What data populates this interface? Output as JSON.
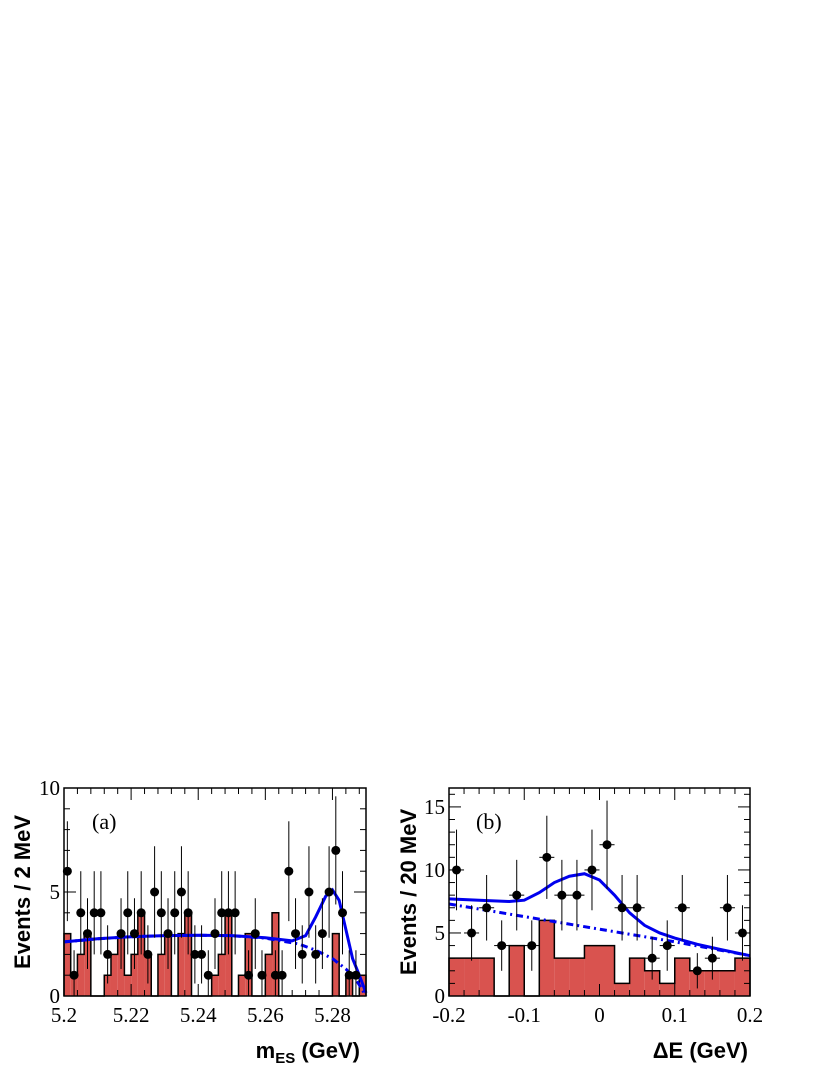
{
  "chart_data": [
    {
      "type": "bar",
      "panel_label": "(a)",
      "xlabel": "m",
      "xlabel_sub": "ES",
      "xlabel_unit": " (GeV)",
      "ylabel": "Events / 2 MeV",
      "xlim": [
        5.2,
        5.29
      ],
      "ylim": [
        0,
        10
      ],
      "x_ticks": [
        {
          "value": 5.2,
          "label": "5.2"
        },
        {
          "value": 5.22,
          "label": "5.22"
        },
        {
          "value": 5.24,
          "label": "5.24"
        },
        {
          "value": 5.26,
          "label": "5.26"
        },
        {
          "value": 5.28,
          "label": "5.28"
        }
      ],
      "y_ticks": [
        {
          "value": 0,
          "label": "0"
        },
        {
          "value": 5,
          "label": "5"
        },
        {
          "value": 10,
          "label": "10"
        }
      ],
      "histogram": {
        "bin_width": 0.002,
        "x_start": 5.2,
        "counts": [
          3,
          1,
          2,
          3,
          0,
          0,
          1,
          2,
          3,
          1,
          2,
          4,
          2,
          0,
          2,
          3,
          0,
          3,
          4,
          0,
          0,
          0,
          1,
          2,
          4,
          0,
          1,
          3,
          0,
          0,
          2,
          4,
          0,
          0,
          0,
          0,
          0,
          0,
          0,
          0,
          3,
          0,
          1,
          0,
          1
        ],
        "color": "#d9534f"
      },
      "data_points": [
        {
          "x": 5.201,
          "y": 6,
          "err": 2.4
        },
        {
          "x": 5.203,
          "y": 1,
          "err": 1.2
        },
        {
          "x": 5.205,
          "y": 4,
          "err": 2.0
        },
        {
          "x": 5.207,
          "y": 3,
          "err": 1.7
        },
        {
          "x": 5.209,
          "y": 4,
          "err": 2.0
        },
        {
          "x": 5.211,
          "y": 4,
          "err": 2.0
        },
        {
          "x": 5.213,
          "y": 2,
          "err": 1.4
        },
        {
          "x": 5.217,
          "y": 3,
          "err": 1.7
        },
        {
          "x": 5.219,
          "y": 4,
          "err": 2.0
        },
        {
          "x": 5.221,
          "y": 3,
          "err": 1.7
        },
        {
          "x": 5.223,
          "y": 4,
          "err": 2.0
        },
        {
          "x": 5.225,
          "y": 2,
          "err": 1.4
        },
        {
          "x": 5.227,
          "y": 5,
          "err": 2.2
        },
        {
          "x": 5.229,
          "y": 4,
          "err": 2.0
        },
        {
          "x": 5.231,
          "y": 3,
          "err": 1.7
        },
        {
          "x": 5.233,
          "y": 4,
          "err": 2.0
        },
        {
          "x": 5.235,
          "y": 5,
          "err": 2.2
        },
        {
          "x": 5.237,
          "y": 4,
          "err": 2.0
        },
        {
          "x": 5.239,
          "y": 2,
          "err": 1.4
        },
        {
          "x": 5.241,
          "y": 2,
          "err": 1.4
        },
        {
          "x": 5.243,
          "y": 1,
          "err": 1.2
        },
        {
          "x": 5.245,
          "y": 3,
          "err": 1.7
        },
        {
          "x": 5.247,
          "y": 4,
          "err": 2.0
        },
        {
          "x": 5.249,
          "y": 4,
          "err": 2.0
        },
        {
          "x": 5.251,
          "y": 4,
          "err": 2.0
        },
        {
          "x": 5.255,
          "y": 1,
          "err": 1.2
        },
        {
          "x": 5.257,
          "y": 3,
          "err": 1.7
        },
        {
          "x": 5.259,
          "y": 1,
          "err": 1.2
        },
        {
          "x": 5.263,
          "y": 1,
          "err": 1.2
        },
        {
          "x": 5.265,
          "y": 1,
          "err": 1.2
        },
        {
          "x": 5.267,
          "y": 6,
          "err": 2.4
        },
        {
          "x": 5.269,
          "y": 3,
          "err": 1.7
        },
        {
          "x": 5.271,
          "y": 2,
          "err": 1.4
        },
        {
          "x": 5.273,
          "y": 5,
          "err": 2.2
        },
        {
          "x": 5.275,
          "y": 2,
          "err": 1.4
        },
        {
          "x": 5.277,
          "y": 3,
          "err": 1.7
        },
        {
          "x": 5.279,
          "y": 5,
          "err": 2.2
        },
        {
          "x": 5.281,
          "y": 7,
          "err": 2.6
        },
        {
          "x": 5.283,
          "y": 4,
          "err": 2.0
        },
        {
          "x": 5.285,
          "y": 1,
          "err": 1.2
        },
        {
          "x": 5.287,
          "y": 1,
          "err": 1.2
        }
      ],
      "fit_total": {
        "color": "#0000ee",
        "points": [
          [
            5.2,
            2.6
          ],
          [
            5.21,
            2.75
          ],
          [
            5.22,
            2.85
          ],
          [
            5.23,
            2.9
          ],
          [
            5.24,
            2.92
          ],
          [
            5.25,
            2.9
          ],
          [
            5.26,
            2.8
          ],
          [
            5.268,
            2.65
          ],
          [
            5.272,
            2.9
          ],
          [
            5.275,
            3.8
          ],
          [
            5.278,
            4.8
          ],
          [
            5.28,
            5.1
          ],
          [
            5.282,
            4.6
          ],
          [
            5.284,
            3.2
          ],
          [
            5.286,
            1.8
          ],
          [
            5.288,
            1.0
          ],
          [
            5.29,
            0.15
          ]
        ]
      },
      "fit_background": {
        "color": "#0000ee",
        "points": [
          [
            5.2,
            2.6
          ],
          [
            5.21,
            2.75
          ],
          [
            5.22,
            2.85
          ],
          [
            5.23,
            2.9
          ],
          [
            5.24,
            2.92
          ],
          [
            5.25,
            2.9
          ],
          [
            5.26,
            2.78
          ],
          [
            5.27,
            2.5
          ],
          [
            5.275,
            2.2
          ],
          [
            5.28,
            1.8
          ],
          [
            5.284,
            1.3
          ],
          [
            5.287,
            0.8
          ],
          [
            5.29,
            0.0
          ]
        ]
      }
    },
    {
      "type": "bar",
      "panel_label": "(b)",
      "xlabel": "ΔE (GeV)",
      "ylabel": "Events / 20 MeV",
      "xlim": [
        -0.2,
        0.2
      ],
      "ylim": [
        0,
        16.5
      ],
      "x_ticks": [
        {
          "value": -0.2,
          "label": "-0.2"
        },
        {
          "value": -0.1,
          "label": "-0.1"
        },
        {
          "value": 0,
          "label": "0"
        },
        {
          "value": 0.1,
          "label": "0.1"
        },
        {
          "value": 0.2,
          "label": "0.2"
        }
      ],
      "y_ticks": [
        {
          "value": 0,
          "label": "0"
        },
        {
          "value": 5,
          "label": "5"
        },
        {
          "value": 10,
          "label": "10"
        },
        {
          "value": 15,
          "label": "15"
        }
      ],
      "histogram": {
        "bin_width": 0.02,
        "x_start": -0.2,
        "counts": [
          3,
          3,
          3,
          0,
          4,
          0,
          6,
          3,
          3,
          4,
          4,
          1,
          3,
          2,
          1,
          3,
          2,
          2,
          2,
          3
        ],
        "color": "#d9534f"
      },
      "data_points": [
        {
          "x": -0.19,
          "y": 10,
          "err": 3.2
        },
        {
          "x": -0.17,
          "y": 5,
          "err": 2.2
        },
        {
          "x": -0.15,
          "y": 7,
          "err": 2.6
        },
        {
          "x": -0.13,
          "y": 4,
          "err": 2.0
        },
        {
          "x": -0.11,
          "y": 8,
          "err": 2.8
        },
        {
          "x": -0.09,
          "y": 4,
          "err": 2.0
        },
        {
          "x": -0.07,
          "y": 11,
          "err": 3.3
        },
        {
          "x": -0.05,
          "y": 8,
          "err": 2.8
        },
        {
          "x": -0.03,
          "y": 8,
          "err": 2.8
        },
        {
          "x": -0.01,
          "y": 10,
          "err": 3.2
        },
        {
          "x": 0.01,
          "y": 12,
          "err": 3.5
        },
        {
          "x": 0.03,
          "y": 7,
          "err": 2.6
        },
        {
          "x": 0.05,
          "y": 7,
          "err": 2.6
        },
        {
          "x": 0.07,
          "y": 3,
          "err": 1.7
        },
        {
          "x": 0.09,
          "y": 4,
          "err": 2.0
        },
        {
          "x": 0.11,
          "y": 7,
          "err": 2.6
        },
        {
          "x": 0.13,
          "y": 2,
          "err": 1.4
        },
        {
          "x": 0.15,
          "y": 3,
          "err": 1.7
        },
        {
          "x": 0.17,
          "y": 7,
          "err": 2.6
        },
        {
          "x": 0.19,
          "y": 5,
          "err": 2.2
        }
      ],
      "fit_total": {
        "color": "#0000ee",
        "points": [
          [
            -0.2,
            7.7
          ],
          [
            -0.16,
            7.6
          ],
          [
            -0.12,
            7.5
          ],
          [
            -0.1,
            7.6
          ],
          [
            -0.08,
            8.2
          ],
          [
            -0.06,
            9.0
          ],
          [
            -0.04,
            9.5
          ],
          [
            -0.02,
            9.7
          ],
          [
            0.0,
            9.2
          ],
          [
            0.02,
            8.0
          ],
          [
            0.04,
            6.6
          ],
          [
            0.06,
            5.6
          ],
          [
            0.08,
            5.0
          ],
          [
            0.1,
            4.6
          ],
          [
            0.13,
            4.1
          ],
          [
            0.16,
            3.7
          ],
          [
            0.2,
            3.2
          ]
        ]
      },
      "fit_background": {
        "color": "#0000ee",
        "points": [
          [
            -0.2,
            7.3
          ],
          [
            -0.1,
            6.3
          ],
          [
            0.0,
            5.3
          ],
          [
            0.1,
            4.3
          ],
          [
            0.2,
            3.2
          ]
        ]
      }
    }
  ]
}
